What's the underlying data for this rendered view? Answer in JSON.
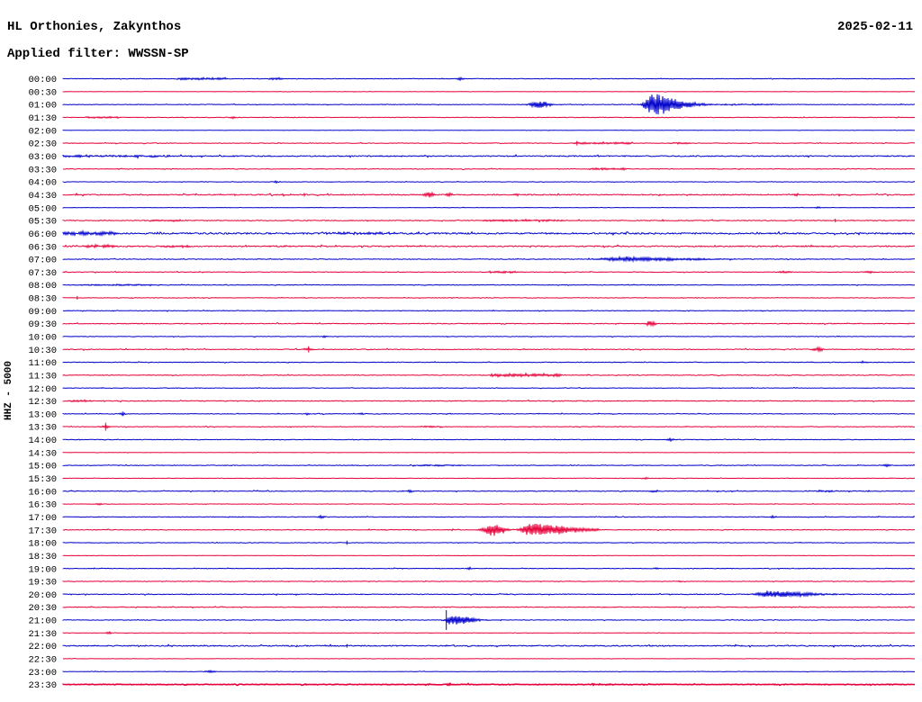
{
  "header": {
    "station": "HL Orthonies, Zakynthos",
    "filter": "Applied filter: WWSSN-SP",
    "date": "2025-02-11"
  },
  "colors": {
    "background": "#ffffff",
    "text": "#000000",
    "trace_hour": "#0000cc",
    "trace_half_hour": "#e6003a"
  },
  "chart_data": {
    "type": "line",
    "title": "HL Orthonies, Zakynthos",
    "subtitle": "Applied filter: WWSSN-SP",
    "date_label": "2025-02-11",
    "ylabel": "HHZ - 5000",
    "x_axis": {
      "minutes_per_line": 30,
      "lines": 48,
      "start": "00:00",
      "end": "23:30"
    },
    "legend": {
      "hour_rows": "blue",
      "half_hour_rows": "red"
    },
    "rows": [
      {
        "time": "00:00",
        "color": "blue",
        "noise": 0.25,
        "events": [
          {
            "type": "seg",
            "t": 4.9,
            "d": 0.9,
            "a": 1.1
          },
          {
            "type": "seg",
            "t": 7.5,
            "d": 0.25,
            "a": 1.0
          },
          {
            "type": "burst",
            "t": 14.0,
            "d": 0.15,
            "a": 1.8
          }
        ]
      },
      {
        "time": "00:30",
        "color": "red",
        "noise": 0.15,
        "events": []
      },
      {
        "time": "01:00",
        "color": "blue",
        "noise": 0.3,
        "events": [
          {
            "type": "burst",
            "t": 16.8,
            "d": 0.4,
            "a": 4.5
          },
          {
            "type": "burst",
            "t": 20.8,
            "d": 0.35,
            "a": 12,
            "tail": true
          },
          {
            "type": "seg",
            "t": 23.5,
            "d": 1.5,
            "a": 0.5
          }
        ]
      },
      {
        "time": "01:30",
        "color": "red",
        "noise": 0.25,
        "events": [
          {
            "type": "seg",
            "t": 1.4,
            "d": 0.6,
            "a": 0.8
          },
          {
            "type": "burst",
            "t": 6.0,
            "d": 0.12,
            "a": 1.4
          }
        ]
      },
      {
        "time": "02:00",
        "color": "blue",
        "noise": 0.15,
        "events": []
      },
      {
        "time": "02:30",
        "color": "red",
        "noise": 0.3,
        "events": [
          {
            "type": "spike",
            "t": 18.1,
            "a": 2.5
          },
          {
            "type": "seg",
            "t": 19.0,
            "d": 1.05,
            "a": 0.9
          },
          {
            "type": "seg",
            "t": 21.7,
            "d": 0.4,
            "a": 0.8
          }
        ]
      },
      {
        "time": "03:00",
        "color": "blue",
        "noise": 0.55,
        "events": [
          {
            "type": "seg",
            "t": 1.9,
            "d": 1.9,
            "a": 0.8
          }
        ]
      },
      {
        "time": "03:30",
        "color": "red",
        "noise": 0.3,
        "events": [
          {
            "type": "seg",
            "t": 19.2,
            "d": 0.65,
            "a": 0.9
          }
        ]
      },
      {
        "time": "04:00",
        "color": "blue",
        "noise": 0.2,
        "events": [
          {
            "type": "burst",
            "t": 7.5,
            "d": 0.1,
            "a": 1.2
          }
        ]
      },
      {
        "time": "04:30",
        "color": "red",
        "noise": 0.55,
        "events": [
          {
            "type": "spike",
            "t": 8.5,
            "a": 2
          },
          {
            "type": "burst",
            "t": 12.9,
            "d": 0.2,
            "a": 3.3
          },
          {
            "type": "burst",
            "t": 13.6,
            "d": 0.16,
            "a": 2
          },
          {
            "type": "burst",
            "t": 16.0,
            "d": 0.1,
            "a": 1.5
          },
          {
            "type": "burst",
            "t": 25.8,
            "d": 0.13,
            "a": 1.8
          }
        ]
      },
      {
        "time": "05:00",
        "color": "blue",
        "noise": 0.18,
        "events": [
          {
            "type": "burst",
            "t": 26.6,
            "d": 0.1,
            "a": 1.3
          }
        ]
      },
      {
        "time": "05:30",
        "color": "red",
        "noise": 0.4,
        "events": [
          {
            "type": "seg",
            "t": 3.6,
            "d": 0.57,
            "a": 0.8
          },
          {
            "type": "seg",
            "t": 16.2,
            "d": 1.43,
            "a": 0.7
          },
          {
            "type": "spike",
            "t": 27.2,
            "a": 2
          }
        ]
      },
      {
        "time": "06:00",
        "color": "blue",
        "noise": 0.8,
        "events": [
          {
            "type": "seg",
            "t": 0.95,
            "d": 0.95,
            "a": 1.7
          },
          {
            "type": "seg",
            "t": 10.5,
            "d": 1.27,
            "a": 0.9
          }
        ]
      },
      {
        "time": "06:30",
        "color": "red",
        "noise": 0.6,
        "events": [
          {
            "type": "seg",
            "t": 1.3,
            "d": 0.57,
            "a": 1.4
          },
          {
            "type": "seg",
            "t": 4.0,
            "d": 0.48,
            "a": 1.0
          }
        ]
      },
      {
        "time": "07:00",
        "color": "blue",
        "noise": 0.35,
        "events": [
          {
            "type": "burst",
            "t": 19.7,
            "d": 0.89,
            "a": 2.2,
            "tail": true
          }
        ]
      },
      {
        "time": "07:30",
        "color": "red",
        "noise": 0.35,
        "events": [
          {
            "type": "seg",
            "t": 15.5,
            "d": 0.48,
            "a": 0.9
          },
          {
            "type": "burst",
            "t": 25.4,
            "d": 0.25,
            "a": 1.2
          },
          {
            "type": "burst",
            "t": 28.4,
            "d": 0.19,
            "a": 1.2
          }
        ]
      },
      {
        "time": "08:00",
        "color": "blue",
        "noise": 0.3,
        "events": [
          {
            "type": "seg",
            "t": 1.9,
            "d": 1.27,
            "a": 0.6
          }
        ]
      },
      {
        "time": "08:30",
        "color": "red",
        "noise": 0.25,
        "events": [
          {
            "type": "spike",
            "t": 0.5,
            "a": 2
          }
        ]
      },
      {
        "time": "09:00",
        "color": "blue",
        "noise": 0.3,
        "events": []
      },
      {
        "time": "09:30",
        "color": "red",
        "noise": 0.4,
        "events": [
          {
            "type": "burst",
            "t": 20.7,
            "d": 0.19,
            "a": 3.2
          }
        ]
      },
      {
        "time": "10:00",
        "color": "blue",
        "noise": 0.25,
        "events": [
          {
            "type": "burst",
            "t": 9.2,
            "d": 0.1,
            "a": 1.2
          }
        ]
      },
      {
        "time": "10:30",
        "color": "red",
        "noise": 0.4,
        "events": [
          {
            "type": "spike",
            "t": 8.65,
            "a": 3.5
          },
          {
            "type": "burst",
            "t": 8.65,
            "d": 0.25,
            "a": 1.2
          },
          {
            "type": "burst",
            "t": 26.6,
            "d": 0.22,
            "a": 2.2
          }
        ]
      },
      {
        "time": "11:00",
        "color": "blue",
        "noise": 0.3,
        "events": [
          {
            "type": "burst",
            "t": 28.2,
            "d": 0.16,
            "a": 1.3
          }
        ]
      },
      {
        "time": "11:30",
        "color": "red",
        "noise": 0.35,
        "events": [
          {
            "type": "seg",
            "t": 16.3,
            "d": 1.27,
            "a": 1.5
          }
        ]
      },
      {
        "time": "12:00",
        "color": "blue",
        "noise": 0.25,
        "events": []
      },
      {
        "time": "12:30",
        "color": "red",
        "noise": 0.4,
        "events": [
          {
            "type": "seg",
            "t": 0.63,
            "d": 0.38,
            "a": 0.8
          }
        ]
      },
      {
        "time": "13:00",
        "color": "blue",
        "noise": 0.3,
        "events": [
          {
            "type": "spike",
            "t": 2.1,
            "a": 2.5
          },
          {
            "type": "burst",
            "t": 2.1,
            "d": 0.12,
            "a": 1.4
          },
          {
            "type": "burst",
            "t": 8.6,
            "d": 0.1,
            "a": 1.2
          },
          {
            "type": "burst",
            "t": 10.5,
            "d": 0.1,
            "a": 1.2
          }
        ]
      },
      {
        "time": "13:30",
        "color": "red",
        "noise": 0.3,
        "events": [
          {
            "type": "spike",
            "t": 1.5,
            "a": 4.5
          },
          {
            "type": "burst",
            "t": 1.5,
            "d": 0.2,
            "a": 1.4
          },
          {
            "type": "seg",
            "t": 13.0,
            "d": 0.38,
            "a": 0.7
          }
        ]
      },
      {
        "time": "14:00",
        "color": "blue",
        "noise": 0.25,
        "events": [
          {
            "type": "burst",
            "t": 21.4,
            "d": 0.13,
            "a": 1.7
          }
        ]
      },
      {
        "time": "14:30",
        "color": "red",
        "noise": 0.15,
        "events": []
      },
      {
        "time": "15:00",
        "color": "blue",
        "noise": 0.3,
        "events": [
          {
            "type": "seg",
            "t": 13.2,
            "d": 0.89,
            "a": 0.7
          },
          {
            "type": "burst",
            "t": 29.0,
            "d": 0.13,
            "a": 1.7
          }
        ]
      },
      {
        "time": "15:30",
        "color": "red",
        "noise": 0.2,
        "events": [
          {
            "type": "burst",
            "t": 20.5,
            "d": 0.13,
            "a": 1.3
          }
        ]
      },
      {
        "time": "16:00",
        "color": "blue",
        "noise": 0.35,
        "events": [
          {
            "type": "burst",
            "t": 12.2,
            "d": 0.13,
            "a": 1.3
          },
          {
            "type": "burst",
            "t": 20.8,
            "d": 0.19,
            "a": 1.4
          },
          {
            "type": "seg",
            "t": 26.8,
            "d": 0.32,
            "a": 0.8
          }
        ]
      },
      {
        "time": "16:30",
        "color": "red",
        "noise": 0.2,
        "events": [
          {
            "type": "burst",
            "t": 1.27,
            "d": 0.13,
            "a": 1.3
          }
        ]
      },
      {
        "time": "17:00",
        "color": "blue",
        "noise": 0.3,
        "events": [
          {
            "type": "burst",
            "t": 9.1,
            "d": 0.13,
            "a": 1.7
          },
          {
            "type": "burst",
            "t": 25.0,
            "d": 0.13,
            "a": 1.3
          }
        ]
      },
      {
        "time": "17:30",
        "color": "red",
        "noise": 0.35,
        "events": [
          {
            "type": "burst",
            "t": 15.2,
            "d": 0.44,
            "a": 7
          },
          {
            "type": "burst",
            "t": 16.5,
            "d": 0.41,
            "a": 7,
            "tail": true
          },
          {
            "type": "seg",
            "t": 18.1,
            "d": 0.79,
            "a": 1.3
          }
        ]
      },
      {
        "time": "18:00",
        "color": "blue",
        "noise": 0.25,
        "events": [
          {
            "type": "spike",
            "t": 10.0,
            "a": 2.2
          }
        ]
      },
      {
        "time": "18:30",
        "color": "red",
        "noise": 0.15,
        "events": []
      },
      {
        "time": "19:00",
        "color": "blue",
        "noise": 0.3,
        "events": [
          {
            "type": "burst",
            "t": 14.3,
            "d": 0.1,
            "a": 1.3
          },
          {
            "type": "burst",
            "t": 20.9,
            "d": 0.1,
            "a": 1.2
          }
        ]
      },
      {
        "time": "19:30",
        "color": "red",
        "noise": 0.25,
        "events": [
          {
            "type": "burst",
            "t": 21.7,
            "d": 0.1,
            "a": 1.2
          }
        ]
      },
      {
        "time": "20:00",
        "color": "blue",
        "noise": 0.4,
        "events": [
          {
            "type": "burst",
            "t": 24.9,
            "d": 0.57,
            "a": 3.2,
            "tail": true
          }
        ]
      },
      {
        "time": "20:30",
        "color": "red",
        "noise": 0.35,
        "events": []
      },
      {
        "time": "21:00",
        "color": "blue",
        "noise": 0.3,
        "events": [
          {
            "type": "spike",
            "t": 13.5,
            "a": 11
          },
          {
            "type": "burst",
            "t": 13.7,
            "d": 0.25,
            "a": 6,
            "tail": true
          }
        ]
      },
      {
        "time": "21:30",
        "color": "red",
        "noise": 0.2,
        "events": [
          {
            "type": "burst",
            "t": 1.6,
            "d": 0.13,
            "a": 1.3
          }
        ]
      },
      {
        "time": "22:00",
        "color": "blue",
        "noise": 0.55,
        "events": [
          {
            "type": "spike",
            "t": 10.0,
            "a": 2
          }
        ]
      },
      {
        "time": "22:30",
        "color": "red",
        "noise": 0.15,
        "events": []
      },
      {
        "time": "23:00",
        "color": "blue",
        "noise": 0.2,
        "events": [
          {
            "type": "burst",
            "t": 5.2,
            "d": 0.19,
            "a": 1.4
          }
        ]
      },
      {
        "time": "23:30",
        "color": "red",
        "noise": 0.35,
        "thick": true,
        "events": [
          {
            "type": "burst",
            "t": 13.6,
            "d": 0.1,
            "a": 1.0
          },
          {
            "type": "seg",
            "t": 19.0,
            "d": 0.38,
            "a": 0.6
          }
        ]
      }
    ]
  }
}
